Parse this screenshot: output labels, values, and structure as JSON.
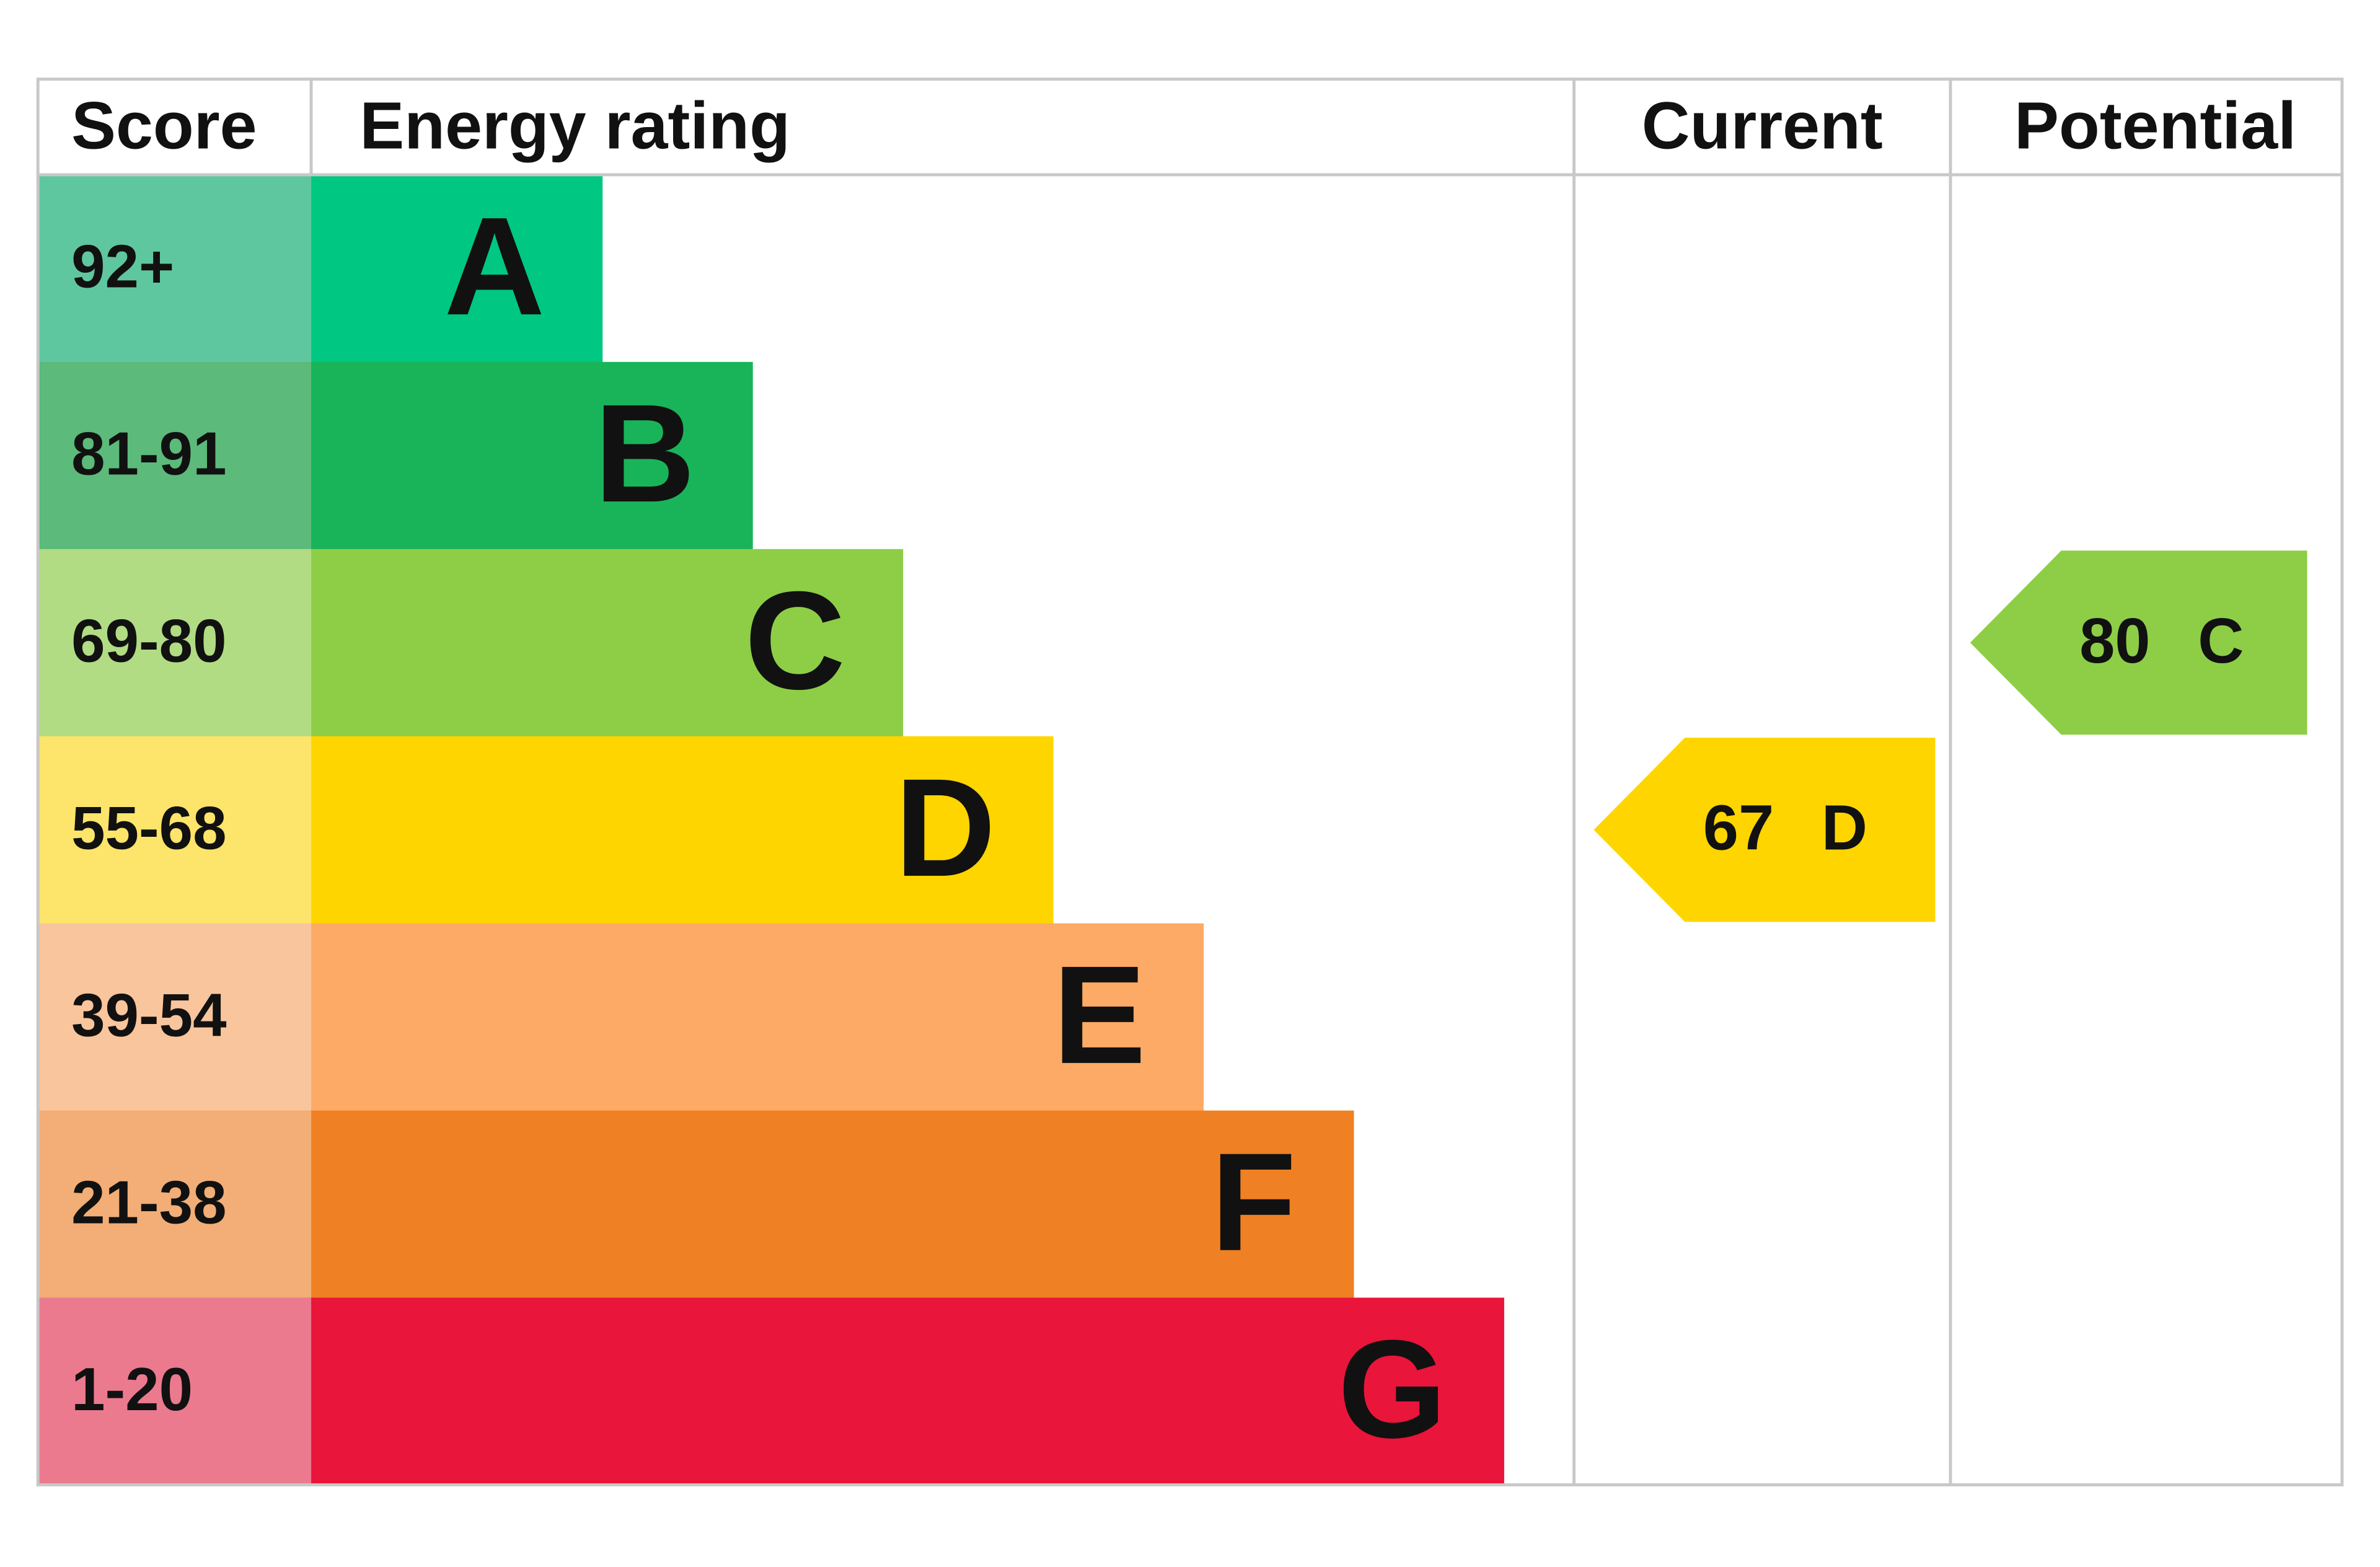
{
  "header": {
    "score": "Score",
    "rating": "Energy rating",
    "current": "Current",
    "potential": "Potential"
  },
  "bands": [
    {
      "score": "92+",
      "letter": "A"
    },
    {
      "score": "81-91",
      "letter": "B"
    },
    {
      "score": "69-80",
      "letter": "C"
    },
    {
      "score": "55-68",
      "letter": "D"
    },
    {
      "score": "39-54",
      "letter": "E"
    },
    {
      "score": "21-38",
      "letter": "F"
    },
    {
      "score": "1-20",
      "letter": "G"
    }
  ],
  "current": {
    "value": 67,
    "letter": "D"
  },
  "potential": {
    "value": 80,
    "letter": "C"
  }
}
